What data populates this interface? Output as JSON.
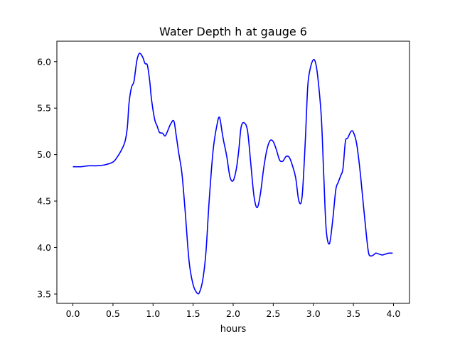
{
  "chart_data": {
    "type": "line",
    "title": "Water Depth h at gauge 6",
    "xlabel": "hours",
    "ylabel": "",
    "xlim": [
      -0.2,
      4.2
    ],
    "ylim": [
      3.4,
      6.22
    ],
    "xticks": [
      0.0,
      0.5,
      1.0,
      1.5,
      2.0,
      2.5,
      3.0,
      3.5,
      4.0
    ],
    "xtick_labels": [
      "0.0",
      "0.5",
      "1.0",
      "1.5",
      "2.0",
      "2.5",
      "3.0",
      "3.5",
      "4.0"
    ],
    "yticks": [
      3.5,
      4.0,
      4.5,
      5.0,
      5.5,
      6.0
    ],
    "ytick_labels": [
      "3.5",
      "4.0",
      "4.5",
      "5.0",
      "5.5",
      "6.0"
    ],
    "grid": false,
    "series": [
      {
        "color": "#0000ff",
        "x": [
          0.0,
          0.1,
          0.2,
          0.3,
          0.4,
          0.5,
          0.55,
          0.6,
          0.65,
          0.68,
          0.7,
          0.73,
          0.76,
          0.78,
          0.8,
          0.83,
          0.87,
          0.9,
          0.93,
          0.96,
          0.98,
          1.02,
          1.05,
          1.08,
          1.12,
          1.15,
          1.18,
          1.22,
          1.26,
          1.29,
          1.32,
          1.36,
          1.4,
          1.45,
          1.5,
          1.55,
          1.58,
          1.62,
          1.66,
          1.7,
          1.75,
          1.8,
          1.83,
          1.86,
          1.88,
          1.92,
          1.96,
          2.0,
          2.04,
          2.07,
          2.1,
          2.14,
          2.18,
          2.22,
          2.26,
          2.3,
          2.34,
          2.38,
          2.42,
          2.46,
          2.5,
          2.54,
          2.58,
          2.62,
          2.66,
          2.7,
          2.74,
          2.78,
          2.82,
          2.86,
          2.9,
          2.93,
          2.96,
          3.0,
          3.03,
          3.06,
          3.1,
          3.13,
          3.16,
          3.2,
          3.24,
          3.28,
          3.31,
          3.34,
          3.37,
          3.4,
          3.43,
          3.47,
          3.5,
          3.54,
          3.58,
          3.62,
          3.66,
          3.69,
          3.72,
          3.75,
          3.78,
          3.82,
          3.86,
          3.9,
          3.94,
          3.96,
          3.99
        ],
        "y": [
          4.87,
          4.87,
          4.88,
          4.88,
          4.89,
          4.92,
          4.97,
          5.04,
          5.14,
          5.3,
          5.55,
          5.72,
          5.78,
          5.9,
          6.02,
          6.09,
          6.05,
          5.98,
          5.96,
          5.78,
          5.6,
          5.38,
          5.31,
          5.24,
          5.23,
          5.2,
          5.25,
          5.33,
          5.36,
          5.2,
          5.02,
          4.8,
          4.4,
          3.85,
          3.6,
          3.51,
          3.52,
          3.65,
          3.95,
          4.5,
          5.05,
          5.33,
          5.4,
          5.25,
          5.15,
          4.98,
          4.76,
          4.72,
          4.85,
          5.05,
          5.3,
          5.34,
          5.25,
          4.9,
          4.55,
          4.43,
          4.58,
          4.85,
          5.05,
          5.15,
          5.14,
          5.05,
          4.94,
          4.93,
          4.98,
          4.97,
          4.88,
          4.75,
          4.5,
          4.55,
          5.15,
          5.73,
          5.92,
          6.02,
          5.98,
          5.8,
          5.4,
          4.78,
          4.2,
          4.04,
          4.28,
          4.62,
          4.7,
          4.77,
          4.85,
          5.14,
          5.18,
          5.25,
          5.24,
          5.12,
          4.85,
          4.5,
          4.15,
          3.94,
          3.91,
          3.92,
          3.94,
          3.93,
          3.92,
          3.93,
          3.94,
          3.94,
          3.94
        ]
      }
    ]
  }
}
